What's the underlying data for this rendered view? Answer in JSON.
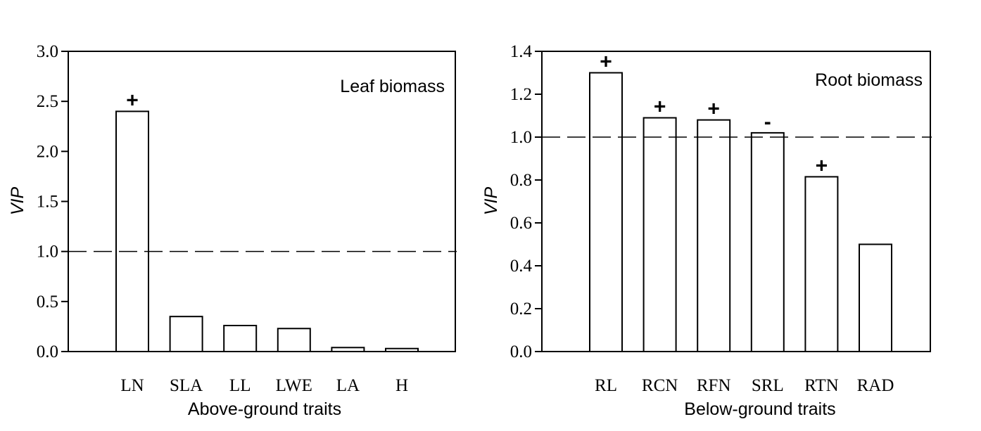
{
  "chart_data": [
    {
      "type": "bar",
      "title": "Leaf biomass",
      "xlabel": "Above-ground traits",
      "ylabel": "VIP",
      "ylim": [
        0,
        3.0
      ],
      "yticks": [
        "0.0",
        "0.5",
        "1.0",
        "1.5",
        "2.0",
        "2.5",
        "3.0"
      ],
      "categories": [
        "LN",
        "SLA",
        "LL",
        "LWE",
        "LA",
        "H"
      ],
      "values": [
        2.4,
        0.35,
        0.26,
        0.23,
        0.04,
        0.03
      ],
      "signs": [
        "+",
        "",
        "",
        "",
        "",
        ""
      ],
      "reference_line": 1.0,
      "grid": false,
      "title_position": "top-right"
    },
    {
      "type": "bar",
      "title": "Root biomass",
      "xlabel": "Below-ground traits",
      "ylabel": "VIP",
      "ylim": [
        0,
        1.4
      ],
      "yticks": [
        "0.0",
        "0.2",
        "0.4",
        "0.6",
        "0.8",
        "1.0",
        "1.2",
        "1.4"
      ],
      "categories": [
        "RL",
        "RCN",
        "RFN",
        "SRL",
        "RTN",
        "RAD"
      ],
      "values": [
        1.3,
        1.09,
        1.08,
        1.02,
        0.815,
        0.5
      ],
      "signs": [
        "+",
        "+",
        "+",
        "-",
        "+",
        ""
      ],
      "reference_line": 1.0,
      "grid": false,
      "title_position": "top-right"
    }
  ]
}
